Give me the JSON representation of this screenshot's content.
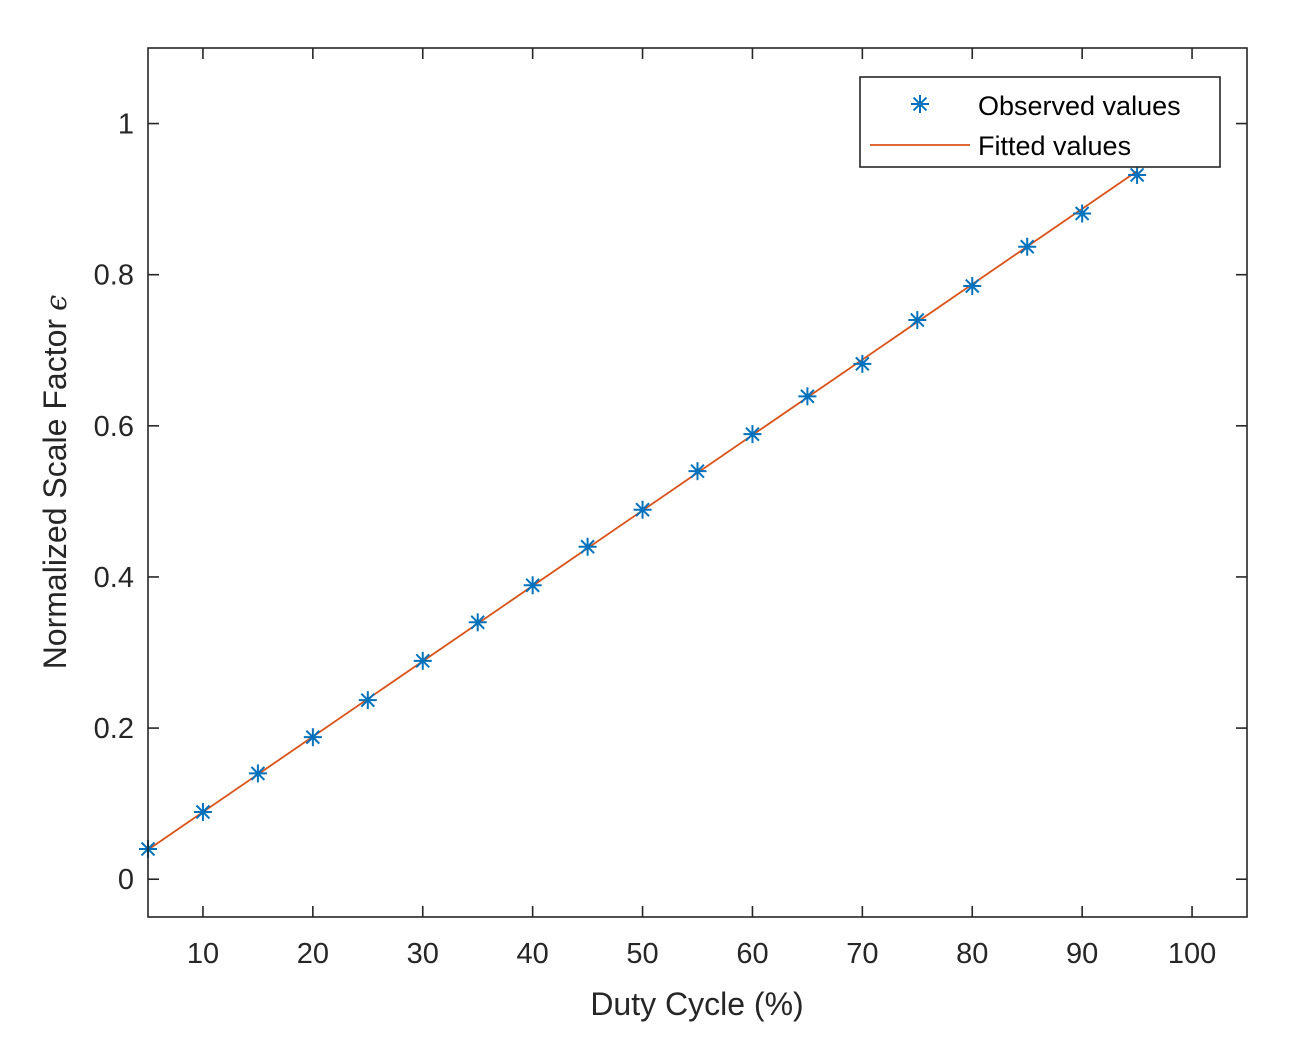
{
  "chart_data": {
    "type": "line",
    "title": "",
    "xlabel": "Duty Cycle (%)",
    "ylabel": "Normalized Scale Factor",
    "ylabel_symbol": "ϵ",
    "xlim": [
      5,
      105
    ],
    "ylim": [
      -0.05,
      1.1
    ],
    "xticks": [
      10,
      20,
      30,
      40,
      50,
      60,
      70,
      80,
      90,
      100
    ],
    "yticks": [
      0,
      0.2,
      0.4,
      0.6,
      0.8,
      1
    ],
    "yticklabels": [
      "0",
      "0.2",
      "0.4",
      "0.6",
      "0.8",
      "1"
    ],
    "grid": false,
    "legend_position": "top-right",
    "series": [
      {
        "name": "Observed values",
        "style": "marker",
        "marker": "asterisk",
        "color": "#0072BD",
        "x": [
          5,
          10,
          15,
          20,
          25,
          30,
          35,
          40,
          45,
          50,
          55,
          60,
          65,
          70,
          75,
          80,
          85,
          90,
          95
        ],
        "y": [
          0.04,
          0.089,
          0.14,
          0.188,
          0.237,
          0.289,
          0.34,
          0.389,
          0.44,
          0.489,
          0.54,
          0.589,
          0.639,
          0.682,
          0.74,
          0.785,
          0.837,
          0.881,
          0.932
        ]
      },
      {
        "name": "Fitted values",
        "style": "line",
        "color": "#D95319",
        "x": [
          5,
          95
        ],
        "y": [
          0.039,
          0.937
        ]
      }
    ]
  }
}
